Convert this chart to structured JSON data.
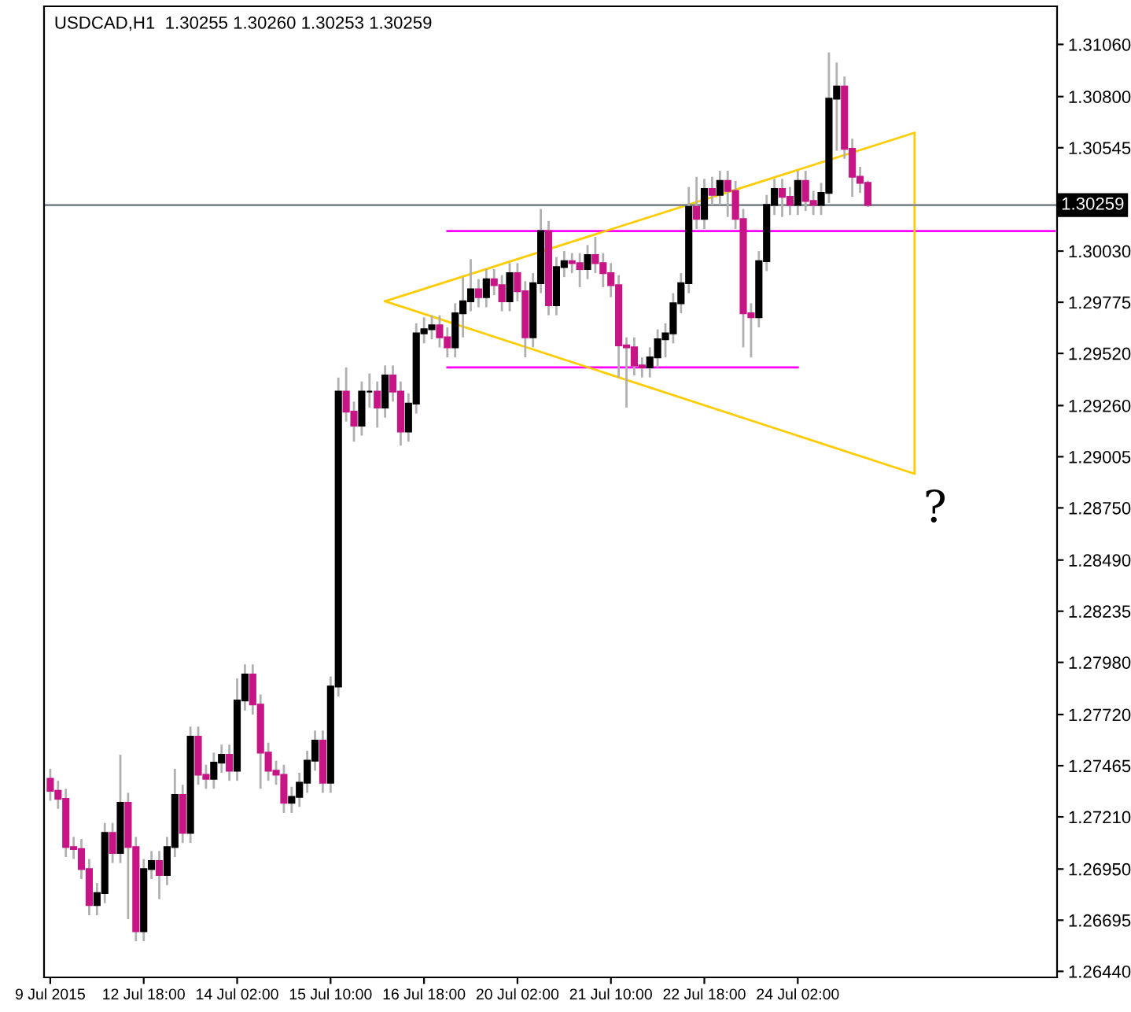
{
  "chart_data": {
    "type": "candlestick",
    "title": "USDCAD,H1  1.30255 1.30260 1.30253 1.30259",
    "categories": [
      "9 Jul 2015",
      null,
      null,
      null,
      null,
      null,
      null,
      null,
      null,
      null,
      null,
      null,
      "12 Jul 18:00",
      null,
      null,
      null,
      null,
      null,
      null,
      null,
      null,
      null,
      null,
      null,
      "14 Jul 02:00",
      null,
      null,
      null,
      null,
      null,
      null,
      null,
      null,
      null,
      null,
      null,
      "15 Jul 10:00",
      null,
      null,
      null,
      null,
      null,
      null,
      null,
      null,
      null,
      null,
      null,
      "16 Jul 18:00",
      null,
      null,
      null,
      null,
      null,
      null,
      null,
      null,
      null,
      null,
      null,
      "20 Jul 02:00",
      null,
      null,
      null,
      null,
      null,
      null,
      null,
      null,
      null,
      null,
      null,
      "21 Jul 10:00",
      null,
      null,
      null,
      null,
      null,
      null,
      null,
      null,
      null,
      null,
      null,
      "22 Jul 18:00",
      null,
      null,
      null,
      null,
      null,
      null,
      null,
      null,
      null,
      null,
      null,
      "24 Jul 02:00",
      null,
      null,
      null,
      null,
      null,
      null,
      null,
      null,
      null,
      null,
      null,
      null,
      null,
      null,
      null,
      null,
      null,
      null,
      null,
      null,
      null,
      null,
      null,
      null,
      null,
      null,
      null,
      null,
      null,
      null,
      null,
      null,
      null
    ],
    "ohlc": [
      [
        1.274,
        1.2745,
        1.2729,
        1.2734
      ],
      [
        1.2734,
        1.2739,
        1.2725,
        1.273
      ],
      [
        1.273,
        1.2735,
        1.2701,
        1.2706
      ],
      [
        1.2706,
        1.2711,
        1.27,
        1.2705
      ],
      [
        1.2705,
        1.271,
        1.269,
        1.2695
      ],
      [
        1.2695,
        1.27,
        1.2672,
        1.2677
      ],
      [
        1.2677,
        1.2688,
        1.2672,
        1.2683
      ],
      [
        1.2683,
        1.2718,
        1.2678,
        1.2713
      ],
      [
        1.2713,
        1.2718,
        1.2698,
        1.2703
      ],
      [
        1.2703,
        1.2752,
        1.2698,
        1.2728
      ],
      [
        1.2728,
        1.2733,
        1.267,
        1.2706
      ],
      [
        1.2706,
        1.2711,
        1.2659,
        1.2664
      ],
      [
        1.2664,
        1.27,
        1.2659,
        1.2695
      ],
      [
        1.2695,
        1.2704,
        1.269,
        1.2699
      ],
      [
        1.2699,
        1.2704,
        1.268,
        1.2692
      ],
      [
        1.2692,
        1.2711,
        1.2687,
        1.2706
      ],
      [
        1.2706,
        1.2745,
        1.2701,
        1.2732
      ],
      [
        1.2732,
        1.2737,
        1.2708,
        1.2713
      ],
      [
        1.2713,
        1.2766,
        1.2708,
        1.2761
      ],
      [
        1.2761,
        1.2766,
        1.2737,
        1.2742
      ],
      [
        1.2742,
        1.2747,
        1.2735,
        1.274
      ],
      [
        1.274,
        1.2753,
        1.2735,
        1.2748
      ],
      [
        1.2748,
        1.2757,
        1.2743,
        1.2752
      ],
      [
        1.2752,
        1.2757,
        1.2739,
        1.2744
      ],
      [
        1.2744,
        1.279,
        1.2739,
        1.2779
      ],
      [
        1.2779,
        1.2797,
        1.2774,
        1.2792
      ],
      [
        1.2792,
        1.2797,
        1.2772,
        1.2777
      ],
      [
        1.2777,
        1.2782,
        1.2735,
        1.2753
      ],
      [
        1.2753,
        1.2758,
        1.2739,
        1.2744
      ],
      [
        1.2744,
        1.2749,
        1.2737,
        1.2742
      ],
      [
        1.2742,
        1.2747,
        1.2723,
        1.2728
      ],
      [
        1.2728,
        1.2736,
        1.2723,
        1.2731
      ],
      [
        1.2731,
        1.2743,
        1.2726,
        1.2738
      ],
      [
        1.2738,
        1.2754,
        1.2733,
        1.2749
      ],
      [
        1.2749,
        1.2764,
        1.2744,
        1.2759
      ],
      [
        1.2759,
        1.2764,
        1.2733,
        1.2738
      ],
      [
        1.2738,
        1.2791,
        1.2733,
        1.2786
      ],
      [
        1.2786,
        1.294,
        1.2781,
        1.2933
      ],
      [
        1.2933,
        1.2945,
        1.2918,
        1.2923
      ],
      [
        1.2923,
        1.2928,
        1.2908,
        1.2916
      ],
      [
        1.2916,
        1.2938,
        1.2911,
        1.2933
      ],
      [
        1.2933,
        1.2942,
        1.2925,
        1.2933
      ],
      [
        1.2933,
        1.2938,
        1.2915,
        1.2925
      ],
      [
        1.2925,
        1.2946,
        1.292,
        1.2941
      ],
      [
        1.2941,
        1.2946,
        1.2928,
        1.2933
      ],
      [
        1.2933,
        1.2938,
        1.2906,
        1.2913
      ],
      [
        1.2913,
        1.2932,
        1.2908,
        1.2927
      ],
      [
        1.2927,
        1.2967,
        1.2922,
        1.2962
      ],
      [
        1.2962,
        1.297,
        1.2957,
        1.2964
      ],
      [
        1.2964,
        1.2971,
        1.2959,
        1.2966
      ],
      [
        1.2966,
        1.2971,
        1.2955,
        1.296
      ],
      [
        1.296,
        1.2965,
        1.295,
        1.2955
      ],
      [
        1.2955,
        1.2977,
        1.295,
        1.2972
      ],
      [
        1.2972,
        1.299,
        1.296,
        1.2978
      ],
      [
        1.2978,
        1.2999,
        1.2973,
        1.2984
      ],
      [
        1.2984,
        1.2989,
        1.2975,
        1.298
      ],
      [
        1.298,
        1.2994,
        1.2975,
        1.2989
      ],
      [
        1.2989,
        1.2994,
        1.2981,
        1.2986
      ],
      [
        1.2986,
        1.2991,
        1.2973,
        1.2978
      ],
      [
        1.2978,
        1.2997,
        1.2973,
        1.2992
      ],
      [
        1.2992,
        1.2997,
        1.2978,
        1.2983
      ],
      [
        1.2983,
        1.2988,
        1.295,
        1.296
      ],
      [
        1.296,
        1.2992,
        1.2955,
        1.2987
      ],
      [
        1.2987,
        1.3024,
        1.2982,
        1.3013
      ],
      [
        1.3013,
        1.3018,
        1.2971,
        1.2976
      ],
      [
        1.2976,
        1.3,
        1.2971,
        1.2995
      ],
      [
        1.2995,
        1.3003,
        1.299,
        1.2998
      ],
      [
        1.2998,
        1.3002,
        1.2992,
        1.2997
      ],
      [
        1.2997,
        1.3002,
        1.2985,
        1.2994
      ],
      [
        1.2994,
        1.3006,
        1.2989,
        1.3001
      ],
      [
        1.3001,
        1.301,
        1.2992,
        1.2997
      ],
      [
        1.2997,
        1.3002,
        1.2985,
        1.2992
      ],
      [
        1.2992,
        1.2997,
        1.298,
        1.2986
      ],
      [
        1.2986,
        1.2991,
        1.294,
        1.2956
      ],
      [
        1.2956,
        1.296,
        1.2925,
        1.2955
      ],
      [
        1.2955,
        1.296,
        1.2941,
        1.2946
      ],
      [
        1.2946,
        1.295,
        1.294,
        1.2945
      ],
      [
        1.2945,
        1.2955,
        1.294,
        1.295
      ],
      [
        1.295,
        1.2964,
        1.2945,
        1.2959
      ],
      [
        1.2959,
        1.2967,
        1.295,
        1.2962
      ],
      [
        1.2962,
        1.2982,
        1.2957,
        1.2977
      ],
      [
        1.2977,
        1.2992,
        1.2972,
        1.2987
      ],
      [
        1.2987,
        1.3035,
        1.2982,
        1.3025
      ],
      [
        1.3025,
        1.304,
        1.3014,
        1.3019
      ],
      [
        1.3019,
        1.3039,
        1.3014,
        1.3034
      ],
      [
        1.3034,
        1.304,
        1.3026,
        1.3031
      ],
      [
        1.3031,
        1.3043,
        1.3026,
        1.3038
      ],
      [
        1.3038,
        1.3043,
        1.302,
        1.3033
      ],
      [
        1.3033,
        1.3038,
        1.3014,
        1.3019
      ],
      [
        1.3019,
        1.3024,
        1.2955,
        1.2972
      ],
      [
        1.2972,
        1.2977,
        1.295,
        1.297
      ],
      [
        1.297,
        1.3003,
        1.2965,
        1.2998
      ],
      [
        1.2998,
        1.3031,
        1.2993,
        1.3026
      ],
      [
        1.3026,
        1.3039,
        1.3021,
        1.3034
      ],
      [
        1.3034,
        1.3039,
        1.302,
        1.303
      ],
      [
        1.303,
        1.3035,
        1.3021,
        1.3026
      ],
      [
        1.3026,
        1.3043,
        1.3021,
        1.3038
      ],
      [
        1.3038,
        1.3043,
        1.3023,
        1.3028
      ],
      [
        1.3028,
        1.3033,
        1.3021,
        1.3026
      ],
      [
        1.3026,
        1.3037,
        1.3021,
        1.3032
      ],
      [
        1.3032,
        1.3102,
        1.3027,
        1.3079
      ],
      [
        1.3079,
        1.3097,
        1.3053,
        1.3085
      ],
      [
        1.3085,
        1.309,
        1.3049,
        1.3054
      ],
      [
        1.3054,
        1.3059,
        1.303,
        1.304
      ],
      [
        1.304,
        1.3045,
        1.3032,
        1.3037
      ],
      [
        1.3037,
        1.3038,
        1.3025,
        1.3026
      ],
      null,
      null,
      null,
      null,
      null,
      null,
      null,
      null,
      null,
      null,
      null,
      null,
      null,
      null,
      null,
      null,
      null,
      null,
      null,
      null,
      null,
      null,
      null,
      null
    ],
    "colors": [
      "#c71585",
      "#c71585",
      "#c71585",
      "#c71585",
      "#c71585",
      "#c71585",
      "#000000",
      "#000000",
      "#c71585",
      "#000000",
      "#c71585",
      "#c71585",
      "#000000",
      "#000000",
      "#c71585",
      "#000000",
      "#000000",
      "#c71585",
      "#000000",
      "#c71585",
      "#c71585",
      "#000000",
      "#000000",
      "#c71585",
      "#000000",
      "#000000",
      "#c71585",
      "#c71585",
      "#c71585",
      "#c71585",
      "#c71585",
      "#000000",
      "#000000",
      "#000000",
      "#000000",
      "#c71585",
      "#000000",
      "#000000",
      "#c71585",
      "#c71585",
      "#000000",
      "#000000",
      "#c71585",
      "#000000",
      "#c71585",
      "#c71585",
      "#000000",
      "#000000",
      "#000000",
      "#000000",
      "#c71585",
      "#c71585",
      "#000000",
      "#000000",
      "#000000",
      "#c71585",
      "#000000",
      "#c71585",
      "#c71585",
      "#000000",
      "#c71585",
      "#c71585",
      "#000000",
      "#000000",
      "#c71585",
      "#000000",
      "#000000",
      "#c71585",
      "#c71585",
      "#000000",
      "#c71585",
      "#c71585",
      "#c71585",
      "#c71585",
      "#c71585",
      "#c71585",
      "#c71585",
      "#000000",
      "#000000",
      "#000000",
      "#000000",
      "#000000",
      "#000000",
      "#c71585",
      "#000000",
      "#c71585",
      "#000000",
      "#c71585",
      "#c71585",
      "#c71585",
      "#c71585",
      "#000000",
      "#000000",
      "#000000",
      "#c71585",
      "#c71585",
      "#000000",
      "#c71585",
      "#c71585",
      "#000000",
      "#000000",
      "#000000",
      "#c71585",
      "#c71585",
      "#c71585",
      "#c71585",
      null,
      null,
      null,
      null,
      null,
      null,
      null,
      null,
      null,
      null,
      null,
      null,
      null,
      null,
      null,
      null,
      null,
      null,
      null,
      null,
      null,
      null,
      null,
      null
    ],
    "series": [
      {
        "type": "line",
        "color": "#ff00ff",
        "values": [
          null,
          null,
          null,
          null,
          null,
          null,
          null,
          null,
          null,
          null,
          null,
          null,
          null,
          null,
          null,
          null,
          null,
          null,
          null,
          null,
          null,
          null,
          null,
          null,
          null,
          null,
          null,
          null,
          null,
          null,
          null,
          null,
          null,
          null,
          null,
          null,
          null,
          null,
          null,
          null,
          null,
          null,
          null,
          null,
          null,
          null,
          null,
          null,
          null,
          null,
          null,
          1.3013,
          null,
          null,
          null,
          null,
          null,
          null,
          null,
          null,
          null,
          null,
          null,
          null,
          null,
          null,
          null,
          null,
          null,
          null,
          null,
          null,
          null,
          null,
          null,
          null,
          null,
          null,
          null,
          null,
          null,
          null,
          null,
          null,
          null,
          null,
          null,
          null,
          null,
          null,
          null,
          null,
          null,
          null,
          null,
          null,
          null,
          null,
          null,
          null,
          null,
          null,
          null,
          null,
          null,
          null,
          null,
          null,
          null,
          null,
          null,
          null,
          null,
          null,
          null,
          null,
          null,
          null,
          null,
          null,
          null,
          null,
          null,
          null,
          null,
          null,
          null,
          null,
          null,
          1.3013
        ]
      },
      {
        "type": "line",
        "color": "#ff00ff",
        "values": [
          null,
          null,
          null,
          null,
          null,
          null,
          null,
          null,
          null,
          null,
          null,
          null,
          null,
          null,
          null,
          null,
          null,
          null,
          null,
          null,
          null,
          null,
          null,
          null,
          null,
          null,
          null,
          null,
          null,
          null,
          null,
          null,
          null,
          null,
          null,
          null,
          null,
          null,
          null,
          null,
          null,
          null,
          null,
          null,
          null,
          null,
          null,
          null,
          null,
          null,
          null,
          1.2945,
          null,
          null,
          null,
          null,
          null,
          null,
          null,
          null,
          null,
          null,
          null,
          null,
          null,
          null,
          null,
          null,
          null,
          null,
          null,
          null,
          null,
          null,
          null,
          null,
          null,
          null,
          null,
          null,
          null,
          null,
          null,
          null,
          null,
          null,
          null,
          null,
          null,
          null,
          null,
          null,
          null,
          null,
          null,
          null,
          1.2945,
          null,
          null,
          null,
          null,
          null,
          null,
          null,
          null,
          null,
          null,
          null,
          null,
          null,
          null,
          null,
          null,
          null,
          null,
          null,
          null,
          null,
          null,
          null,
          null,
          null,
          null,
          null,
          null,
          null,
          null,
          null,
          null,
          null
        ]
      },
      {
        "type": "line",
        "color": "#ffcc00",
        "values": [
          null,
          null,
          null,
          null,
          null,
          null,
          null,
          null,
          null,
          null,
          null,
          null,
          null,
          null,
          null,
          null,
          null,
          null,
          null,
          null,
          null,
          null,
          null,
          null,
          null,
          null,
          null,
          null,
          null,
          null,
          null,
          null,
          null,
          null,
          null,
          null,
          null,
          null,
          null,
          null,
          null,
          null,
          null,
          1.2978,
          null,
          null,
          null,
          null,
          null,
          null,
          null,
          null,
          null,
          null,
          null,
          null,
          null,
          null,
          null,
          null,
          null,
          null,
          null,
          null,
          null,
          null,
          null,
          null,
          null,
          null,
          null,
          null,
          null,
          null,
          null,
          null,
          null,
          null,
          null,
          null,
          null,
          null,
          null,
          null,
          null,
          null,
          null,
          null,
          null,
          null,
          null,
          null,
          null,
          null,
          null,
          null,
          null,
          null,
          null,
          null,
          null,
          null,
          null,
          null,
          null,
          null,
          null,
          null,
          null,
          null,
          null,
          1.3062,
          null,
          null,
          null,
          null,
          null,
          null,
          null,
          null,
          null,
          null,
          null,
          null,
          null,
          null,
          null,
          null,
          null,
          null
        ]
      },
      {
        "type": "line",
        "color": "#ffcc00",
        "values": [
          null,
          null,
          null,
          null,
          null,
          null,
          null,
          null,
          null,
          null,
          null,
          null,
          null,
          null,
          null,
          null,
          null,
          null,
          null,
          null,
          null,
          null,
          null,
          null,
          null,
          null,
          null,
          null,
          null,
          null,
          null,
          null,
          null,
          null,
          null,
          null,
          null,
          null,
          null,
          null,
          null,
          null,
          null,
          1.2978,
          null,
          null,
          null,
          null,
          null,
          null,
          null,
          null,
          null,
          null,
          null,
          null,
          null,
          null,
          null,
          null,
          null,
          null,
          null,
          null,
          null,
          null,
          null,
          null,
          null,
          null,
          null,
          null,
          null,
          null,
          null,
          null,
          null,
          null,
          null,
          null,
          null,
          null,
          null,
          null,
          null,
          null,
          null,
          null,
          null,
          null,
          null,
          null,
          null,
          null,
          null,
          null,
          null,
          null,
          null,
          null,
          null,
          null,
          null,
          null,
          null,
          null,
          null,
          null,
          null,
          null,
          null,
          1.2892,
          null,
          null,
          null,
          null,
          null,
          null,
          null,
          null,
          null,
          null,
          null,
          null,
          null,
          null,
          null,
          null,
          null,
          null
        ],
        "errors": [
          null,
          null,
          null,
          null,
          null,
          null,
          null,
          null,
          null,
          null,
          null,
          null,
          null,
          null,
          null,
          null,
          null,
          null,
          null,
          null,
          null,
          null,
          null,
          null,
          null,
          null,
          null,
          null,
          null,
          null,
          null,
          null,
          null,
          null,
          null,
          null,
          null,
          null,
          null,
          null,
          null,
          null,
          null,
          null,
          null,
          null,
          null,
          null,
          null,
          null,
          null,
          null,
          null,
          null,
          null,
          null,
          null,
          null,
          null,
          null,
          null,
          null,
          null,
          null,
          null,
          null,
          null,
          null,
          null,
          null,
          null,
          null,
          null,
          null,
          null,
          null,
          null,
          null,
          null,
          null,
          null,
          null,
          null,
          null,
          null,
          null,
          null,
          null,
          null,
          null,
          null,
          null,
          null,
          null,
          null,
          null,
          null,
          null,
          null,
          null,
          null,
          null,
          null,
          null,
          null,
          null,
          null,
          null,
          null,
          null,
          null,
          [
            1.2892,
            1.3062
          ],
          null,
          null,
          null,
          null,
          null,
          null,
          null,
          null,
          null,
          null,
          null,
          null,
          null,
          null,
          null,
          null,
          null,
          null
        ]
      }
    ],
    "ref_lines": [
      {
        "axis": "y",
        "value": 1.30259,
        "label": "1.30259",
        "color": "#808890"
      }
    ],
    "annotations": [
      "?"
    ],
    "ylim": [
      1.2641,
      1.3125
    ],
    "yticks": [
      {
        "value": 1.3106,
        "label": "1.31060"
      },
      {
        "value": 1.308,
        "label": "1.30800"
      },
      {
        "value": 1.30545,
        "label": "1.30545"
      },
      {
        "value": 1.3003,
        "label": "1.30030"
      },
      {
        "value": 1.29775,
        "label": "1.29775"
      },
      {
        "value": 1.2952,
        "label": "1.29520"
      },
      {
        "value": 1.2926,
        "label": "1.29260"
      },
      {
        "value": 1.29005,
        "label": "1.29005"
      },
      {
        "value": 1.2875,
        "label": "1.28750"
      },
      {
        "value": 1.2849,
        "label": "1.28490"
      },
      {
        "value": 1.28235,
        "label": "1.28235"
      },
      {
        "value": 1.2798,
        "label": "1.27980"
      },
      {
        "value": 1.2772,
        "label": "1.27720"
      },
      {
        "value": 1.27465,
        "label": "1.27465"
      },
      {
        "value": 1.2721,
        "label": "1.27210"
      },
      {
        "value": 1.2695,
        "label": "1.26950"
      },
      {
        "value": 1.26695,
        "label": "1.26695"
      },
      {
        "value": 1.2644,
        "label": "1.26440"
      }
    ],
    "grid": false,
    "legend": false
  }
}
